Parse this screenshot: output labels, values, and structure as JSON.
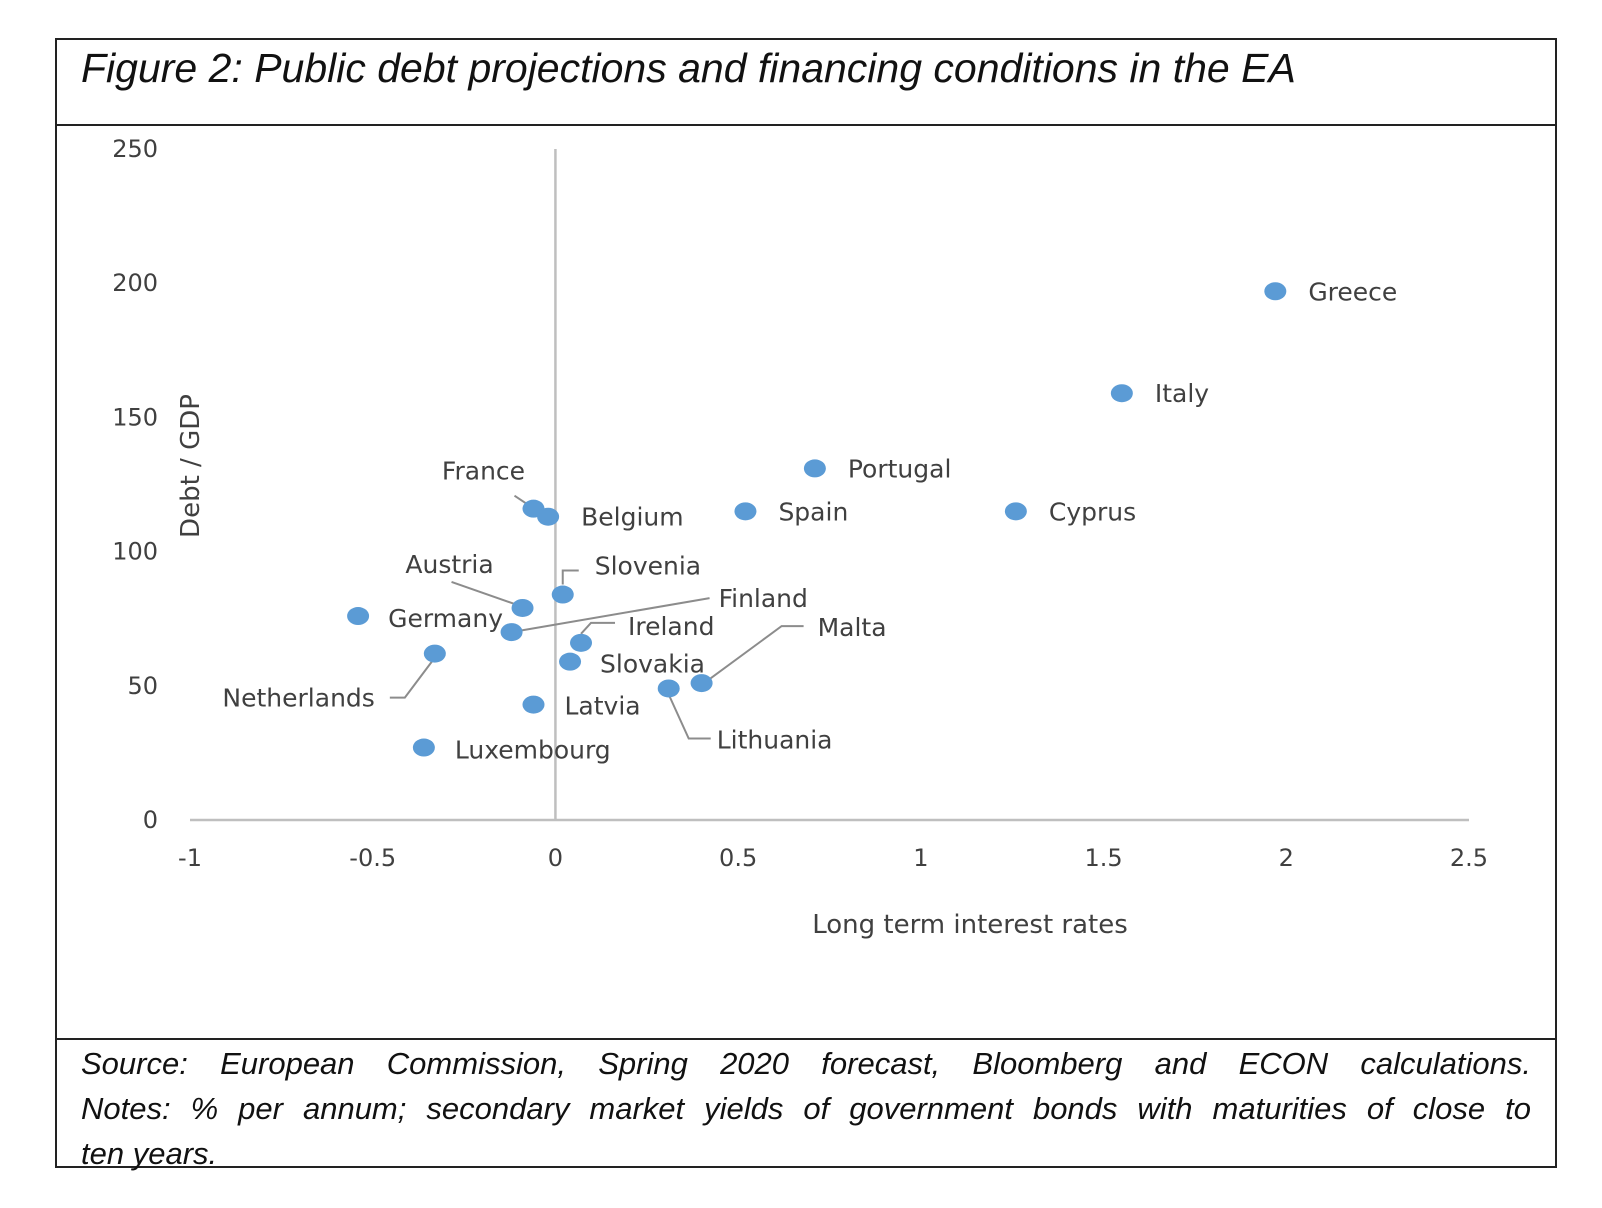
{
  "figure": {
    "title": "Figure 2: Public debt projections and financing conditions in the EA",
    "source_line": "Source: European Commission, Spring 2020 forecast, Bloomberg and ECON calculations.",
    "notes_line1": "Notes: % per annum; secondary market yields of government bonds with maturities of close to",
    "notes_line2": "ten years."
  },
  "colors": {
    "point": "#5b9bd5",
    "axis": "#bfbfbf",
    "leader": "#8c8c8c",
    "text": "#404040"
  },
  "chart_data": {
    "type": "scatter",
    "title": "",
    "xlabel": "Long term interest rates",
    "ylabel": "Debt / GDP",
    "xlim": [
      -1,
      2.5
    ],
    "ylim": [
      0,
      250
    ],
    "x_ticks": [
      -1,
      -0.5,
      0,
      0.5,
      1,
      1.5,
      2,
      2.5
    ],
    "x_tick_labels": [
      "-1",
      "-0.5",
      "0",
      "0.5",
      "1",
      "1.5",
      "2",
      "2.5"
    ],
    "y_ticks": [
      0,
      50,
      100,
      150,
      200,
      250
    ],
    "y_tick_labels": [
      "0",
      "50",
      "100",
      "150",
      "200",
      "250"
    ],
    "grid": false,
    "points": [
      {
        "label": "Greece",
        "x": 1.97,
        "y": 197
      },
      {
        "label": "Italy",
        "x": 1.55,
        "y": 159
      },
      {
        "label": "Portugal",
        "x": 0.71,
        "y": 131
      },
      {
        "label": "Cyprus",
        "x": 1.26,
        "y": 115
      },
      {
        "label": "Spain",
        "x": 0.52,
        "y": 115
      },
      {
        "label": "France",
        "x": -0.06,
        "y": 116
      },
      {
        "label": "Belgium",
        "x": -0.02,
        "y": 113
      },
      {
        "label": "Slovenia",
        "x": 0.02,
        "y": 84
      },
      {
        "label": "Austria",
        "x": -0.09,
        "y": 79
      },
      {
        "label": "Germany",
        "x": -0.54,
        "y": 76
      },
      {
        "label": "Finland",
        "x": -0.12,
        "y": 70
      },
      {
        "label": "Ireland",
        "x": 0.07,
        "y": 66
      },
      {
        "label": "Netherlands",
        "x": -0.33,
        "y": 62
      },
      {
        "label": "Slovakia",
        "x": 0.04,
        "y": 59
      },
      {
        "label": "Malta",
        "x": 0.4,
        "y": 51
      },
      {
        "label": "Lithuania",
        "x": 0.31,
        "y": 49
      },
      {
        "label": "Latvia",
        "x": -0.06,
        "y": 43
      },
      {
        "label": "Luxembourg",
        "x": -0.36,
        "y": 27
      }
    ]
  }
}
